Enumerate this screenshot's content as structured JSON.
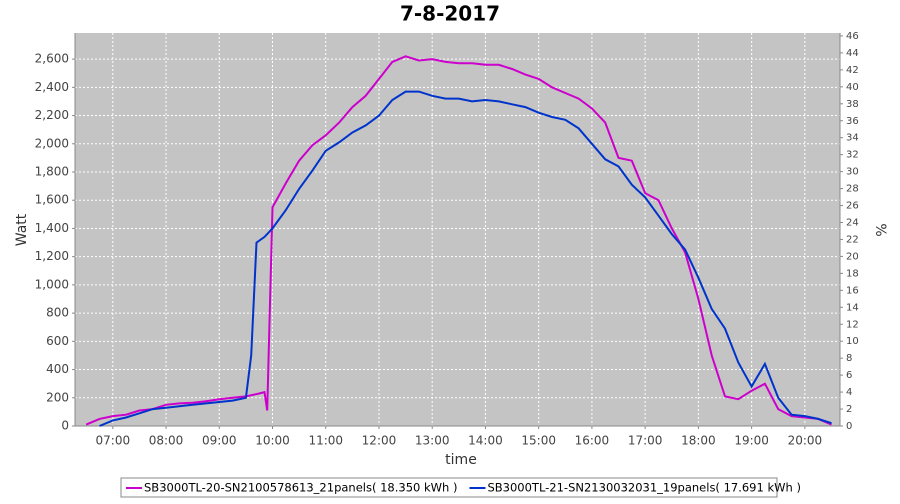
{
  "chart_data": {
    "type": "line",
    "title": "7-8-2017",
    "xlabel": "time",
    "ylabel": "Watt",
    "y2label": "%",
    "xlim": [
      6.29,
      20.66
    ],
    "xticks": [
      {
        "value": 7,
        "label": "07:00"
      },
      {
        "value": 8,
        "label": "08:00"
      },
      {
        "value": 9,
        "label": "09:00"
      },
      {
        "value": 10,
        "label": "10:00"
      },
      {
        "value": 11,
        "label": "11:00"
      },
      {
        "value": 12,
        "label": "12:00"
      },
      {
        "value": 13,
        "label": "13:00"
      },
      {
        "value": 14,
        "label": "14:00"
      },
      {
        "value": 15,
        "label": "15:00"
      },
      {
        "value": 16,
        "label": "16:00"
      },
      {
        "value": 17,
        "label": "17:00"
      },
      {
        "value": 18,
        "label": "18:00"
      },
      {
        "value": 19,
        "label": "19:00"
      },
      {
        "value": 20,
        "label": "20:00"
      }
    ],
    "ylim": [
      0,
      2785
    ],
    "yticks": [
      0,
      200,
      400,
      600,
      800,
      {
        "value": 1000,
        "label": "1,000"
      },
      {
        "value": 1200,
        "label": "1,200"
      },
      {
        "value": 1400,
        "label": "1,400"
      },
      {
        "value": 1600,
        "label": "1,600"
      },
      {
        "value": 1800,
        "label": "1,800"
      },
      {
        "value": 2000,
        "label": "2,000"
      },
      {
        "value": 2200,
        "label": "2,200"
      },
      {
        "value": 2400,
        "label": "2,400"
      },
      {
        "value": 2600,
        "label": "2,600"
      }
    ],
    "y2lim": [
      0,
      46.35
    ],
    "y2ticks": [
      0,
      2,
      4,
      6,
      8,
      10,
      12,
      14,
      16,
      18,
      20,
      22,
      24,
      26,
      28,
      30,
      32,
      34,
      36,
      38,
      40,
      42,
      44,
      46
    ],
    "grid": true,
    "legend": "bottom",
    "series": [
      {
        "name": "SB3000TL-20-SN2100578613_21panels( 18.350 kWh )",
        "color": "#cc00cc",
        "x": [
          6.5,
          6.75,
          7.0,
          7.25,
          7.5,
          7.75,
          8.0,
          8.25,
          8.5,
          8.75,
          9.0,
          9.25,
          9.5,
          9.75,
          9.85,
          9.9,
          10.0,
          10.25,
          10.5,
          10.75,
          11.0,
          11.25,
          11.5,
          11.75,
          12.0,
          12.25,
          12.5,
          12.75,
          13.0,
          13.25,
          13.5,
          13.75,
          14.0,
          14.25,
          14.5,
          14.75,
          15.0,
          15.25,
          15.5,
          15.75,
          16.0,
          16.25,
          16.5,
          16.75,
          17.0,
          17.25,
          17.5,
          17.75,
          18.0,
          18.25,
          18.5,
          18.75,
          19.0,
          19.25,
          19.5,
          19.75,
          20.0,
          20.25,
          20.5
        ],
        "values": [
          10,
          50,
          70,
          80,
          110,
          120,
          150,
          160,
          165,
          175,
          190,
          200,
          210,
          230,
          240,
          110,
          1550,
          1720,
          1880,
          1990,
          2060,
          2150,
          2260,
          2340,
          2460,
          2580,
          2620,
          2590,
          2600,
          2580,
          2570,
          2570,
          2560,
          2560,
          2530,
          2490,
          2460,
          2400,
          2360,
          2320,
          2250,
          2150,
          1900,
          1880,
          1650,
          1600,
          1400,
          1230,
          900,
          500,
          210,
          190,
          250,
          300,
          120,
          70,
          60,
          50,
          10
        ]
      },
      {
        "name": "SB3000TL-21-SN2130032031_19panels( 17.691 kWh )",
        "color": "#0033cc",
        "x": [
          6.75,
          7.0,
          7.25,
          7.5,
          7.75,
          8.0,
          8.25,
          8.5,
          8.75,
          9.0,
          9.25,
          9.5,
          9.6,
          9.7,
          9.85,
          10.0,
          10.25,
          10.5,
          10.75,
          11.0,
          11.25,
          11.5,
          11.75,
          12.0,
          12.25,
          12.5,
          12.75,
          13.0,
          13.25,
          13.5,
          13.75,
          14.0,
          14.25,
          14.5,
          14.75,
          15.0,
          15.25,
          15.5,
          15.75,
          16.0,
          16.25,
          16.5,
          16.75,
          17.0,
          17.25,
          17.5,
          17.75,
          18.0,
          18.25,
          18.5,
          18.75,
          19.0,
          19.25,
          19.5,
          19.75,
          20.0,
          20.25,
          20.5
        ],
        "values": [
          0,
          40,
          60,
          90,
          120,
          130,
          140,
          150,
          160,
          170,
          180,
          200,
          500,
          1300,
          1340,
          1400,
          1530,
          1680,
          1810,
          1950,
          2010,
          2080,
          2130,
          2200,
          2310,
          2370,
          2370,
          2340,
          2320,
          2320,
          2300,
          2310,
          2300,
          2280,
          2260,
          2220,
          2190,
          2170,
          2110,
          2000,
          1890,
          1840,
          1710,
          1620,
          1490,
          1360,
          1250,
          1050,
          830,
          690,
          450,
          280,
          440,
          200,
          80,
          70,
          50,
          20
        ]
      }
    ]
  }
}
